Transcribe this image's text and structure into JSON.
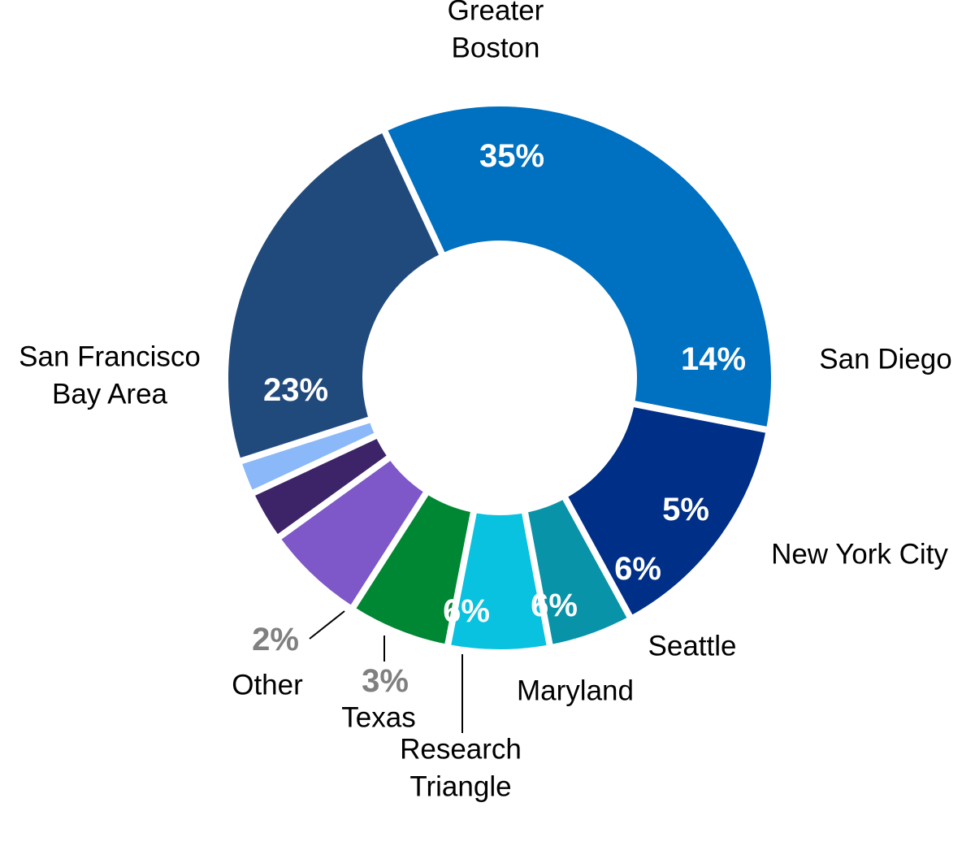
{
  "chart_data": {
    "type": "pie",
    "subtype": "donut",
    "title": "",
    "legend": "none",
    "slices": [
      {
        "name": "Greater Boston",
        "value": 35,
        "label": "35%",
        "color": "#0070C0",
        "label_color": "#FFFFFF",
        "label_lines": [
          "Greater",
          "Boston"
        ]
      },
      {
        "name": "San Diego",
        "value": 14,
        "label": "14%",
        "color": "#002F87",
        "label_color": "#FFFFFF",
        "label_lines": [
          "San Diego"
        ]
      },
      {
        "name": "New York City",
        "value": 5,
        "label": "5%",
        "color": "#0893A8",
        "label_color": "#FFFFFF",
        "label_lines": [
          "New York City"
        ]
      },
      {
        "name": "Seattle",
        "value": 6,
        "label": "6%",
        "color": "#08C2E0",
        "label_color": "#FFFFFF",
        "label_lines": [
          "Seattle"
        ]
      },
      {
        "name": "Maryland",
        "value": 6,
        "label": "6%",
        "color": "#008733",
        "label_color": "#FFFFFF",
        "label_lines": [
          "Maryland"
        ]
      },
      {
        "name": "Research Triangle",
        "value": 6,
        "label": "6%",
        "color": "#7E57C8",
        "label_color": "#FFFFFF",
        "label_lines": [
          "Research",
          "Triangle"
        ]
      },
      {
        "name": "Texas",
        "value": 3,
        "label": "3%",
        "color": "#3D2468",
        "label_color": "#808080",
        "label_lines": [
          "Texas"
        ]
      },
      {
        "name": "Other",
        "value": 2,
        "label": "2%",
        "color": "#8AB8F8",
        "label_color": "#808080",
        "label_lines": [
          "Other"
        ]
      },
      {
        "name": "San Francisco Bay Area",
        "value": 23,
        "label": "23%",
        "color": "#214A7C",
        "label_color": "#FFFFFF",
        "label_lines": [
          "San Francisco",
          "Bay Area"
        ]
      }
    ]
  }
}
